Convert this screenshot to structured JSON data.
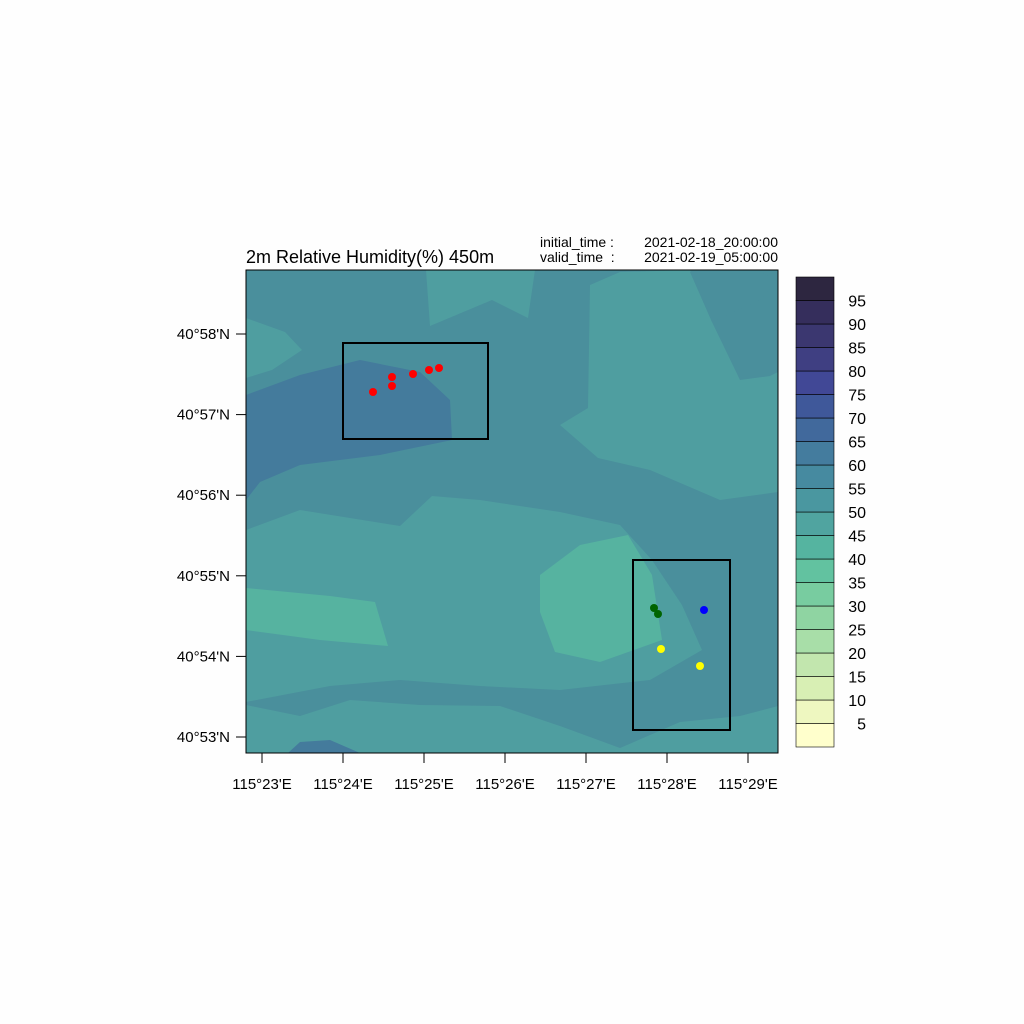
{
  "title": "2m Relative Humidity(%) 450m",
  "run_info": [
    {
      "label": "initial_time :",
      "value": "2021-02-18_20:00:00"
    },
    {
      "label": "valid_time  :",
      "value": "2021-02-19_05:00:00"
    }
  ],
  "lat_ticks": [
    "40°58'N",
    "40°57'N",
    "40°56'N",
    "40°55'N",
    "40°54'N",
    "40°53'N"
  ],
  "lon_ticks": [
    "115°23'E",
    "115°24'E",
    "115°25'E",
    "115°26'E",
    "115°27'E",
    "115°28'E",
    "115°29'E"
  ],
  "colorbar_labels": [
    5,
    10,
    15,
    20,
    25,
    30,
    35,
    40,
    45,
    50,
    55,
    60,
    65,
    70,
    75,
    80,
    85,
    90,
    95
  ]
}
